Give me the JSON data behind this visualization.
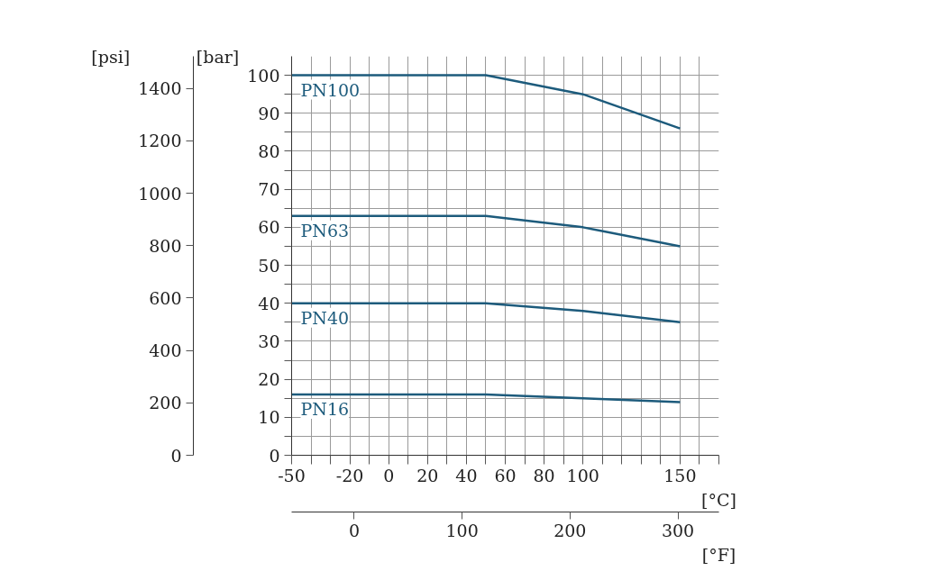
{
  "chart_data": {
    "type": "line",
    "xlabel": "[°C]",
    "ylabel": "[bar]",
    "y2label": "[psi]",
    "x2label": "[°F]",
    "x": [
      -50,
      50,
      100,
      150
    ],
    "series": [
      {
        "name": "PN100",
        "color": "#1d5b7c",
        "values": [
          100,
          100,
          95,
          86
        ]
      },
      {
        "name": "PN63",
        "color": "#1d5b7c",
        "values": [
          63,
          63,
          60,
          55
        ]
      },
      {
        "name": "PN40",
        "color": "#1d5b7c",
        "values": [
          40,
          40,
          38,
          35
        ]
      },
      {
        "name": "PN16",
        "color": "#1d5b7c",
        "values": [
          16,
          16,
          15,
          14
        ]
      }
    ],
    "xlim": [
      -50,
      170
    ],
    "xticks": [
      -50,
      {
        "value": -40,
        "label": null
      },
      {
        "value": -30,
        "label": null
      },
      -20,
      {
        "value": -10,
        "label": null
      },
      0,
      {
        "value": 10,
        "label": null
      },
      20,
      {
        "value": 30,
        "label": null
      },
      40,
      {
        "value": 50,
        "label": null
      },
      60,
      {
        "value": 70,
        "label": null
      },
      80,
      {
        "value": 90,
        "label": null
      },
      100,
      {
        "value": 110,
        "label": null
      },
      {
        "value": 120,
        "label": null
      },
      {
        "value": 130,
        "label": null
      },
      {
        "value": 140,
        "label": null
      },
      150,
      {
        "value": 160,
        "label": null
      },
      {
        "value": 170,
        "label": null
      }
    ],
    "x2lim": [
      -58,
      338
    ],
    "x2ticks": [
      0,
      100,
      200,
      300
    ],
    "ylim": [
      0,
      105
    ],
    "yticks": [
      0,
      {
        "value": 5,
        "label": null
      },
      10,
      {
        "value": 15,
        "label": null
      },
      20,
      {
        "value": 25,
        "label": null
      },
      30,
      {
        "value": 35,
        "label": null
      },
      40,
      {
        "value": 45,
        "label": null
      },
      50,
      {
        "value": 55,
        "label": null
      },
      60,
      {
        "value": 65,
        "label": null
      },
      70,
      {
        "value": 75,
        "label": null
      },
      80,
      {
        "value": 85,
        "label": null
      },
      90,
      {
        "value": 95,
        "label": null
      },
      100
    ],
    "y2lim": [
      0,
      1523
    ],
    "y2ticks": [
      0,
      200,
      400,
      600,
      800,
      1000,
      1200,
      1400
    ],
    "grid": true
  }
}
